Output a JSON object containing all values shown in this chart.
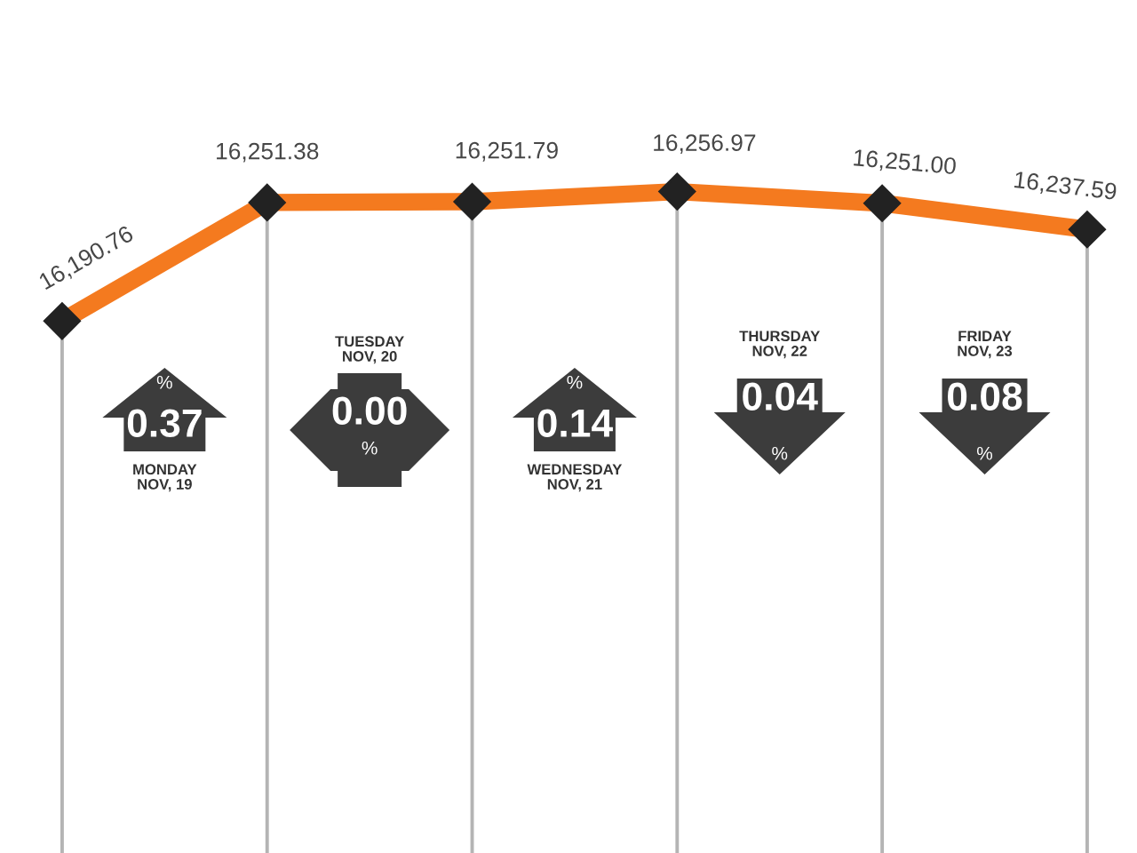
{
  "chart_data": {
    "type": "line",
    "categories": [
      null,
      null,
      null,
      null,
      null,
      null
    ],
    "series": [
      {
        "color": "#f47a1f",
        "values": [
          16190.76,
          16251.38,
          16251.79,
          16256.97,
          16251.0,
          16237.59
        ],
        "value_labels": [
          "16,190.76",
          "16,251.38",
          "16,251.79",
          "16,256.97",
          "16,251.00",
          "16,237.59"
        ]
      }
    ],
    "marker": "diamond",
    "grid": "x",
    "annotations": [
      "0.37",
      "%",
      "MONDAY\nNOV, 19",
      "0.00",
      "%",
      "TUESDAY\nNOV, 20",
      "0.14",
      "%",
      "WEDNESDAY\nNOV, 21",
      "0.04",
      "%",
      "THURSDAY\nNOV, 22",
      "0.08",
      "%",
      "FRIDAY\nNOV, 23"
    ]
  }
}
